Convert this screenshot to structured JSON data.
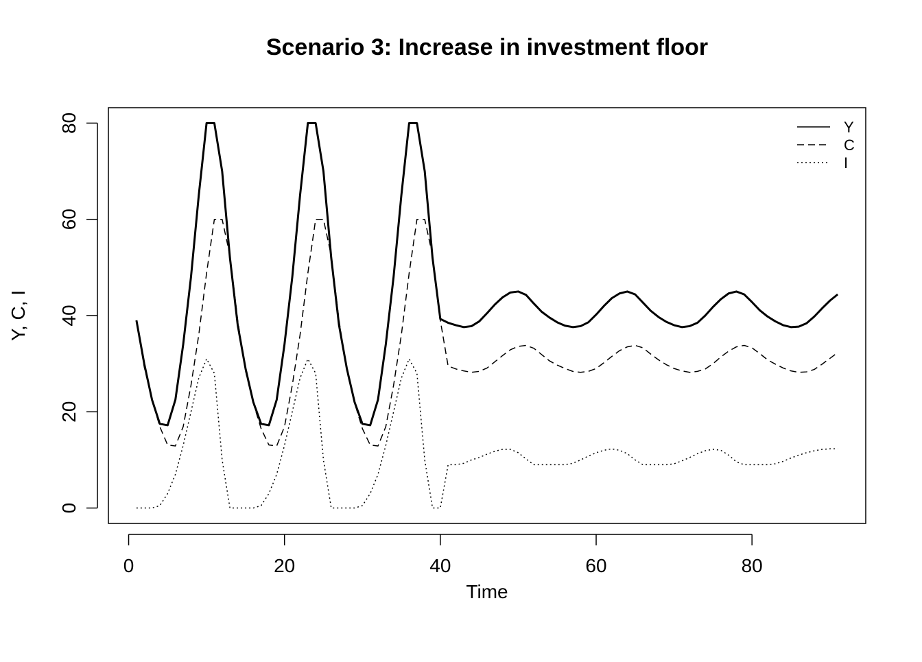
{
  "chart_data": {
    "type": "line",
    "title": "Scenario 3: Increase in investment floor",
    "x_label": "Time",
    "y_label": "Y, C, I",
    "x": [
      1,
      2,
      3,
      4,
      5,
      6,
      7,
      8,
      9,
      10,
      11,
      12,
      13,
      14,
      15,
      16,
      17,
      18,
      19,
      20,
      21,
      22,
      23,
      24,
      25,
      26,
      27,
      28,
      29,
      30,
      31,
      32,
      33,
      34,
      35,
      36,
      37,
      38,
      39,
      40,
      41,
      42,
      43,
      44,
      45,
      46,
      47,
      48,
      49,
      50,
      51,
      52,
      53,
      54,
      55,
      56,
      57,
      58,
      59,
      60,
      61,
      62,
      63,
      64,
      65,
      66,
      67,
      68,
      69,
      70,
      71,
      72,
      73,
      74,
      75,
      76,
      77,
      78,
      79,
      80,
      81,
      82,
      83,
      84,
      85,
      86,
      87,
      88,
      89,
      90,
      91
    ],
    "series": [
      {
        "name": "Y",
        "color": "#000000",
        "linetype": "solid",
        "width": 3,
        "values": [
          39,
          30,
          22.5,
          17.5,
          17.2,
          22.5,
          34,
          48,
          65,
          80,
          80,
          70,
          52,
          38,
          29,
          22,
          17.5,
          17.2,
          22.5,
          34,
          48,
          65,
          80,
          80,
          70,
          52,
          38,
          29,
          22,
          17.5,
          17.2,
          22.5,
          34,
          48,
          65,
          80,
          80,
          70,
          52,
          39.3,
          38.5,
          38,
          37.6,
          37.8,
          38.8,
          40.5,
          42.3,
          43.8,
          44.8,
          45,
          44.3,
          42.5,
          40.8,
          39.6,
          38.6,
          37.9,
          37.6,
          37.8,
          38.6,
          40.2,
          42,
          43.6,
          44.6,
          45,
          44.4,
          42.7,
          41,
          39.7,
          38.7,
          38,
          37.6,
          37.8,
          38.5,
          40,
          41.8,
          43.4,
          44.6,
          45,
          44.4,
          42.8,
          41.1,
          39.8,
          38.8,
          38,
          37.6,
          37.7,
          38.4,
          39.8,
          41.5,
          43.1,
          44.4
        ]
      },
      {
        "name": "C",
        "color": "#000000",
        "linetype": "dashed",
        "width": 1.5,
        "values": [
          39,
          29.3,
          22.5,
          16.9,
          13.1,
          12.9,
          16.9,
          25.5,
          36,
          48.8,
          60,
          60,
          52.5,
          39,
          28.5,
          21.8,
          16.5,
          13.1,
          12.9,
          16.9,
          25.5,
          36,
          48.8,
          60,
          60,
          52.5,
          39,
          28.5,
          21.8,
          16.5,
          13.1,
          12.9,
          16.9,
          25.5,
          36,
          48.8,
          60,
          60,
          52.5,
          39,
          29.5,
          28.9,
          28.5,
          28.2,
          28.4,
          29.1,
          30.4,
          31.7,
          32.9,
          33.6,
          33.8,
          33.2,
          31.9,
          30.6,
          29.7,
          29,
          28.4,
          28.2,
          28.4,
          29,
          30.2,
          31.5,
          32.7,
          33.5,
          33.8,
          33.3,
          32,
          30.8,
          29.8,
          29,
          28.5,
          28.2,
          28.4,
          28.9,
          30,
          31.4,
          32.6,
          33.5,
          33.8,
          33.3,
          32.1,
          30.8,
          29.9,
          29.1,
          28.5,
          28.2,
          28.3,
          28.8,
          29.9,
          31.1,
          32.3
        ]
      },
      {
        "name": "I",
        "color": "#000000",
        "linetype": "dotted",
        "width": 1.5,
        "values": [
          0,
          0,
          0,
          0.5,
          3,
          7,
          13,
          20,
          27,
          31,
          28,
          10,
          0,
          0,
          0,
          0,
          0.5,
          3,
          7,
          13,
          20,
          27,
          31,
          28,
          10,
          0,
          0,
          0,
          0,
          0.5,
          3,
          7,
          13,
          20,
          27,
          31,
          28,
          10,
          0,
          0,
          9,
          9,
          9.3,
          10,
          10.5,
          11.2,
          11.8,
          12.2,
          12.2,
          11.5,
          10.2,
          9,
          9,
          9,
          9,
          9,
          9.3,
          10,
          10.8,
          11.5,
          12,
          12.3,
          12,
          11.3,
          10,
          9,
          9,
          9,
          9,
          9.2,
          9.8,
          10.5,
          11.3,
          11.9,
          12.2,
          12,
          11,
          9.6,
          9,
          9,
          9,
          9,
          9.2,
          9.7,
          10.4,
          11,
          11.5,
          11.9,
          12.2,
          12.3,
          12.3
        ]
      }
    ],
    "xlim": [
      -2.6,
      94.6
    ],
    "ylim": [
      -3.2,
      83.2
    ],
    "xticks": [
      0,
      20,
      40,
      60,
      80
    ],
    "yticks": [
      0,
      20,
      40,
      60,
      80
    ],
    "legend": "top-right",
    "grid": false
  }
}
